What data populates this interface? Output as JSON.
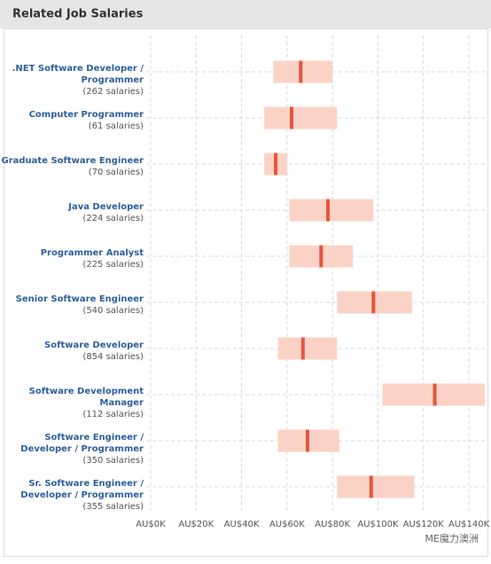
{
  "header": {
    "title": "Related Job Salaries"
  },
  "chart_data": {
    "type": "range",
    "categories": [
      [
        ".NET Software Developer /",
        "Programmer"
      ],
      [
        "Computer Programmer"
      ],
      [
        "Graduate Software Engineer"
      ],
      [
        "Java Developer"
      ],
      [
        "Programmer Analyst"
      ],
      [
        "Senior Software Engineer"
      ],
      [
        "Software Developer"
      ],
      [
        "Software Development",
        "Manager"
      ],
      [
        "Software Engineer /",
        "Developer / Programmer"
      ],
      [
        "Sr. Software Engineer /",
        "Developer / Programmer"
      ]
    ],
    "counts": [
      "(262 salaries)",
      "(61 salaries)",
      "(70 salaries)",
      "(224 salaries)",
      "(225 salaries)",
      "(540 salaries)",
      "(854 salaries)",
      "(112 salaries)",
      "(350 salaries)",
      "(355 salaries)"
    ],
    "ranges": [
      [
        54,
        80
      ],
      [
        50,
        82
      ],
      [
        50,
        60
      ],
      [
        61,
        98
      ],
      [
        61,
        89
      ],
      [
        82,
        115
      ],
      [
        56,
        82
      ],
      [
        102,
        147
      ],
      [
        56,
        83
      ],
      [
        82,
        116
      ]
    ],
    "medians": [
      66,
      62,
      55,
      78,
      75,
      98,
      67,
      125,
      69,
      97
    ],
    "range_color": "#fbd3c6",
    "median_color": "#e8553a",
    "xlim": [
      0,
      147
    ],
    "xticks": [
      {
        "value": 0,
        "label": "AU$0K"
      },
      {
        "value": 20,
        "label": "AU$20K"
      },
      {
        "value": 40,
        "label": "AU$40K"
      },
      {
        "value": 60,
        "label": "AU$60K"
      },
      {
        "value": 80,
        "label": "AU$80K"
      },
      {
        "value": 100,
        "label": "AU$100K"
      },
      {
        "value": 120,
        "label": "AU$120K"
      },
      {
        "value": 140,
        "label": "AU$140K"
      }
    ],
    "grid": true
  },
  "watermark": "ME魔力澳洲"
}
